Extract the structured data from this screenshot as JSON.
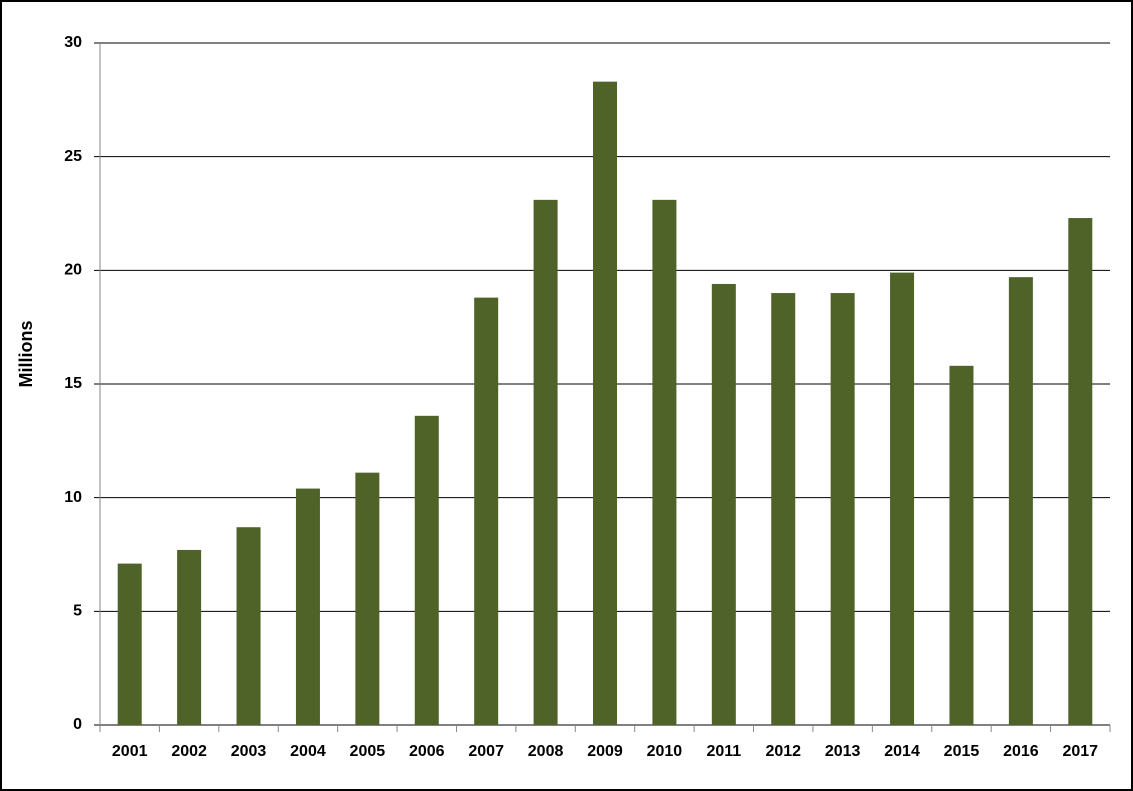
{
  "chart_data": {
    "type": "bar",
    "y_label": "Millions",
    "categories": [
      "2001",
      "2002",
      "2003",
      "2004",
      "2005",
      "2006",
      "2007",
      "2008",
      "2009",
      "2010",
      "2011",
      "2012",
      "2013",
      "2014",
      "2015",
      "2016",
      "2017"
    ],
    "values": [
      7.1,
      7.7,
      8.7,
      10.4,
      11.1,
      13.6,
      18.8,
      23.1,
      28.3,
      23.1,
      19.4,
      19.0,
      19.0,
      19.9,
      15.8,
      19.7,
      22.3
    ],
    "color": "#4f6228",
    "ylim": [
      0,
      30
    ],
    "yticks": [
      0,
      5,
      10,
      15,
      20,
      25,
      30
    ],
    "grid": true
  }
}
